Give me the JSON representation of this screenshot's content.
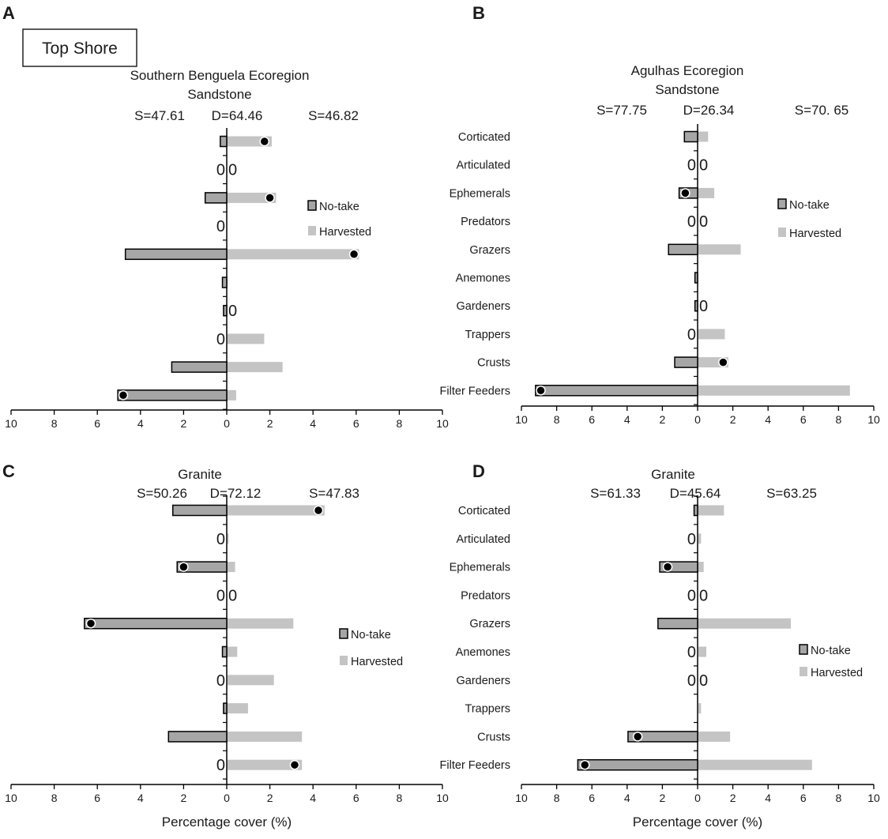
{
  "figure": {
    "shore_label": "Top Shore",
    "colors": {
      "no_take": "#a6a6a6",
      "harvested": "#c4c4c4",
      "outline": "#000000",
      "dot": "#000000"
    }
  },
  "chart_data": [
    {
      "panel": "A",
      "type": "bar",
      "orientation": "diverging-horizontal",
      "title": [
        "Southern Benguela Ecoregion",
        "Sandstone"
      ],
      "stats": [
        "S=47.61",
        "D=64.46",
        "S=46.82"
      ],
      "legend": [
        "No-take",
        "Harvested"
      ],
      "legend_position": "center-right",
      "xlabel": "",
      "xlim": [
        -10,
        10
      ],
      "ticks": [
        "10",
        "8",
        "6",
        "4",
        "2",
        "0",
        "2",
        "4",
        "6",
        "8",
        "10"
      ],
      "categories": [
        "Corticated",
        "Articulated",
        "Ephemerals",
        "Predators",
        "Grazers",
        "Anemones",
        "Gardeners",
        "Trappers",
        "Crusts",
        "Filter Feeders"
      ],
      "show_categories": false,
      "series": [
        {
          "name": "No-take",
          "values": [
            0.3,
            0,
            1.0,
            0,
            4.7,
            0.2,
            0.15,
            0,
            2.55,
            5.05
          ],
          "zero_labels": [
            false,
            true,
            false,
            true,
            false,
            false,
            false,
            true,
            false,
            false
          ]
        },
        {
          "name": "Harvested",
          "values": [
            2.05,
            0,
            2.25,
            0,
            6.1,
            0,
            0,
            1.7,
            2.55,
            0.4
          ],
          "zero_labels": [
            false,
            true,
            false,
            false,
            false,
            false,
            true,
            false,
            false,
            false
          ]
        }
      ],
      "dots": [
        [
          1,
          1.75
        ],
        null,
        [
          1,
          2.0
        ],
        null,
        [
          1,
          5.9
        ],
        null,
        null,
        null,
        null,
        [
          0,
          4.8
        ]
      ]
    },
    {
      "panel": "B",
      "type": "bar",
      "orientation": "diverging-horizontal",
      "title": [
        "Agulhas Ecoregion",
        "Sandstone"
      ],
      "stats": [
        "S=77.75",
        "D=26.34",
        "S=70. 65"
      ],
      "legend": [
        "No-take",
        "Harvested"
      ],
      "legend_position": "center-right",
      "xlabel": "",
      "xlim": [
        -10,
        10
      ],
      "ticks": [
        "10",
        "8",
        "6",
        "4",
        "2",
        "0",
        "2",
        "4",
        "6",
        "8",
        "10"
      ],
      "categories": [
        "Corticated",
        "Articulated",
        "Ephemerals",
        "Predators",
        "Grazers",
        "Anemones",
        "Gardeners",
        "Trappers",
        "Crusts",
        "Filter Feeders"
      ],
      "show_categories": true,
      "series": [
        {
          "name": "No-take",
          "values": [
            0.75,
            0,
            1.05,
            0,
            1.65,
            0.15,
            0.15,
            0,
            1.3,
            9.2
          ],
          "zero_labels": [
            false,
            true,
            false,
            true,
            false,
            false,
            false,
            true,
            false,
            false
          ]
        },
        {
          "name": "Harvested",
          "values": [
            0.55,
            0,
            0.9,
            0,
            2.4,
            0,
            0,
            1.5,
            1.7,
            8.6
          ],
          "zero_labels": [
            false,
            true,
            false,
            true,
            false,
            false,
            true,
            false,
            false,
            false
          ]
        }
      ],
      "dots": [
        null,
        null,
        [
          0,
          0.7
        ],
        null,
        null,
        null,
        null,
        null,
        [
          1,
          1.45
        ],
        [
          0,
          8.9
        ]
      ]
    },
    {
      "panel": "C",
      "type": "bar",
      "orientation": "diverging-horizontal",
      "title": [
        "Granite"
      ],
      "stats": [
        "S=50.26",
        "D=72.12",
        "S=47.83"
      ],
      "legend": [
        "No-take",
        "Harvested"
      ],
      "legend_position": "center-right",
      "xlabel": "Percentage cover (%)",
      "xlim": [
        -10,
        10
      ],
      "ticks": [
        "10",
        "8",
        "6",
        "4",
        "2",
        "0",
        "2",
        "4",
        "6",
        "8",
        "10"
      ],
      "categories": [
        "Corticated",
        "Articulated",
        "Ephemerals",
        "Predators",
        "Grazers",
        "Anemones",
        "Gardeners",
        "Trappers",
        "Crusts",
        "Filter Feeders"
      ],
      "show_categories": false,
      "series": [
        {
          "name": "No-take",
          "values": [
            2.5,
            0,
            2.3,
            0,
            6.6,
            0.2,
            0,
            0.15,
            2.7,
            0
          ],
          "zero_labels": [
            false,
            true,
            false,
            true,
            false,
            false,
            true,
            false,
            false,
            true
          ]
        },
        {
          "name": "Harvested",
          "values": [
            4.5,
            0.05,
            0.35,
            0,
            3.05,
            0.45,
            2.15,
            0.95,
            3.45,
            3.45
          ],
          "zero_labels": [
            false,
            false,
            false,
            true,
            false,
            false,
            false,
            false,
            false,
            false
          ]
        }
      ],
      "dots": [
        [
          1,
          4.25
        ],
        null,
        [
          0,
          2.0
        ],
        null,
        [
          0,
          6.3
        ],
        null,
        null,
        null,
        null,
        [
          1,
          3.15
        ]
      ]
    },
    {
      "panel": "D",
      "type": "bar",
      "orientation": "diverging-horizontal",
      "title": [
        "Granite"
      ],
      "stats": [
        "S=61.33",
        "D=45.64",
        "S=63.25"
      ],
      "legend": [
        "No-take",
        "Harvested"
      ],
      "legend_position": "center-right",
      "xlabel": "Percentage cover (%)",
      "xlim": [
        -10,
        10
      ],
      "ticks": [
        "10",
        "8",
        "6",
        "4",
        "2",
        "0",
        "2",
        "4",
        "6",
        "8",
        "10"
      ],
      "categories": [
        "Corticated",
        "Articulated",
        "Ephemerals",
        "Predators",
        "Grazers",
        "Anemones",
        "Gardeners",
        "Trappers",
        "Crusts",
        "Filter Feeders"
      ],
      "show_categories": true,
      "series": [
        {
          "name": "No-take",
          "values": [
            0.2,
            0,
            2.15,
            0,
            2.25,
            0,
            0,
            0,
            3.95,
            6.8
          ],
          "zero_labels": [
            false,
            true,
            false,
            true,
            false,
            true,
            true,
            false,
            false,
            false
          ]
        },
        {
          "name": "Harvested",
          "values": [
            1.45,
            0.15,
            0.3,
            0,
            5.25,
            0.45,
            0,
            0.15,
            1.8,
            6.45
          ],
          "zero_labels": [
            false,
            false,
            false,
            true,
            false,
            false,
            true,
            false,
            false,
            false
          ]
        }
      ],
      "dots": [
        null,
        null,
        [
          0,
          1.7
        ],
        null,
        null,
        null,
        null,
        null,
        [
          0,
          3.4
        ],
        [
          0,
          6.4
        ]
      ]
    }
  ]
}
